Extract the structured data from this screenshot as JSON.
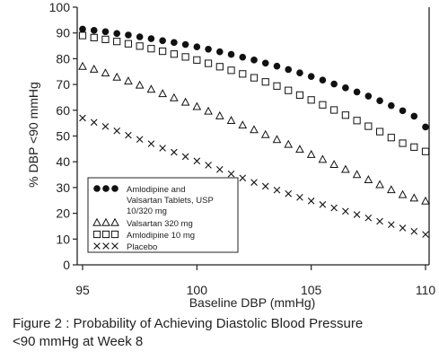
{
  "chart_data": {
    "type": "scatter",
    "xlabel": "Baseline DBP (mmHg)",
    "ylabel": "% DBP <90 mmHg",
    "xlim": [
      95,
      110
    ],
    "ylim": [
      0,
      100
    ],
    "x_ticks": [
      "95",
      "100",
      "105",
      "110"
    ],
    "y_ticks": [
      "0",
      "10",
      "20",
      "30",
      "40",
      "50",
      "60",
      "70",
      "80",
      "90",
      "100"
    ],
    "legend_position": "lower-left",
    "series": [
      {
        "name": "Amlodipine and Valsartan Tablets, USP 10/320 mg",
        "marker": "filled-circle",
        "color": "#111111",
        "points": [
          [
            95.0,
            91.5
          ],
          [
            95.5,
            91.0
          ],
          [
            96.0,
            90.5
          ],
          [
            96.5,
            89.8
          ],
          [
            97.0,
            89.2
          ],
          [
            97.5,
            88.5
          ],
          [
            98.0,
            87.8
          ],
          [
            98.5,
            87.0
          ],
          [
            99.0,
            86.3
          ],
          [
            99.5,
            85.5
          ],
          [
            100.0,
            84.6
          ],
          [
            100.5,
            83.7
          ],
          [
            101.0,
            82.7
          ],
          [
            101.5,
            81.7
          ],
          [
            102.0,
            80.6
          ],
          [
            102.5,
            79.5
          ],
          [
            103.0,
            78.3
          ],
          [
            103.5,
            77.1
          ],
          [
            104.0,
            75.8
          ],
          [
            104.5,
            74.5
          ],
          [
            105.0,
            73.1
          ],
          [
            105.5,
            71.7
          ],
          [
            106.0,
            70.2
          ],
          [
            106.5,
            68.7
          ],
          [
            107.0,
            67.1
          ],
          [
            107.5,
            65.5
          ],
          [
            108.0,
            63.7
          ],
          [
            108.5,
            61.8
          ],
          [
            109.0,
            59.8
          ],
          [
            109.5,
            57.7
          ],
          [
            110.0,
            53.5
          ]
        ]
      },
      {
        "name": "Valsartan 320 mg",
        "marker": "open-triangle",
        "color": "#111111",
        "points": [
          [
            95.0,
            77.0
          ],
          [
            95.5,
            75.9
          ],
          [
            96.0,
            74.4
          ],
          [
            96.5,
            72.8
          ],
          [
            97.0,
            71.3
          ],
          [
            97.5,
            69.7
          ],
          [
            98.0,
            68.1
          ],
          [
            98.5,
            66.4
          ],
          [
            99.0,
            64.8
          ],
          [
            99.5,
            63.1
          ],
          [
            100.0,
            61.4
          ],
          [
            100.5,
            59.6
          ],
          [
            101.0,
            57.8
          ],
          [
            101.5,
            56.0
          ],
          [
            102.0,
            54.2
          ],
          [
            102.5,
            52.4
          ],
          [
            103.0,
            50.5
          ],
          [
            103.5,
            48.6
          ],
          [
            104.0,
            46.7
          ],
          [
            104.5,
            44.8
          ],
          [
            105.0,
            42.8
          ],
          [
            105.5,
            40.9
          ],
          [
            106.0,
            38.9
          ],
          [
            106.5,
            37.0
          ],
          [
            107.0,
            35.0
          ],
          [
            107.5,
            33.0
          ],
          [
            108.0,
            31.1
          ],
          [
            108.5,
            29.1
          ],
          [
            109.0,
            27.2
          ],
          [
            109.5,
            25.9
          ],
          [
            110.0,
            24.7
          ]
        ]
      },
      {
        "name": "Amlodipine 10 mg",
        "marker": "open-square",
        "color": "#111111",
        "points": [
          [
            95.0,
            89.0
          ],
          [
            95.5,
            88.2
          ],
          [
            96.0,
            87.5
          ],
          [
            96.5,
            86.7
          ],
          [
            97.0,
            85.8
          ],
          [
            97.5,
            84.9
          ],
          [
            98.0,
            83.9
          ],
          [
            98.5,
            82.9
          ],
          [
            99.0,
            81.8
          ],
          [
            99.5,
            80.7
          ],
          [
            100.0,
            79.5
          ],
          [
            100.5,
            78.2
          ],
          [
            101.0,
            76.9
          ],
          [
            101.5,
            75.5
          ],
          [
            102.0,
            74.1
          ],
          [
            102.5,
            72.6
          ],
          [
            103.0,
            71.0
          ],
          [
            103.5,
            69.4
          ],
          [
            104.0,
            67.7
          ],
          [
            104.5,
            65.9
          ],
          [
            105.0,
            64.0
          ],
          [
            105.5,
            62.1
          ],
          [
            106.0,
            60.1
          ],
          [
            106.5,
            58.1
          ],
          [
            107.0,
            56.0
          ],
          [
            107.5,
            53.8
          ],
          [
            108.0,
            51.7
          ],
          [
            108.5,
            49.4
          ],
          [
            109.0,
            47.2
          ],
          [
            109.5,
            45.7
          ],
          [
            110.0,
            44.0
          ]
        ]
      },
      {
        "name": "Placebo",
        "marker": "x",
        "color": "#111111",
        "points": [
          [
            95.0,
            57.0
          ],
          [
            95.5,
            55.3
          ],
          [
            96.0,
            53.7
          ],
          [
            96.5,
            52.0
          ],
          [
            97.0,
            50.3
          ],
          [
            97.5,
            48.7
          ],
          [
            98.0,
            47.0
          ],
          [
            98.5,
            45.3
          ],
          [
            99.0,
            43.7
          ],
          [
            99.5,
            42.0
          ],
          [
            100.0,
            40.3
          ],
          [
            100.5,
            38.7
          ],
          [
            101.0,
            37.0
          ],
          [
            101.5,
            35.3
          ],
          [
            102.0,
            33.7
          ],
          [
            102.5,
            32.0
          ],
          [
            103.0,
            30.5
          ],
          [
            103.5,
            29.0
          ],
          [
            104.0,
            27.6
          ],
          [
            104.5,
            26.2
          ],
          [
            105.0,
            24.8
          ],
          [
            105.5,
            23.4
          ],
          [
            106.0,
            22.1
          ],
          [
            106.5,
            20.8
          ],
          [
            107.0,
            19.5
          ],
          [
            107.5,
            18.2
          ],
          [
            108.0,
            16.9
          ],
          [
            108.5,
            15.6
          ],
          [
            109.0,
            14.3
          ],
          [
            109.5,
            13.0
          ],
          [
            110.0,
            11.8
          ]
        ]
      }
    ]
  },
  "caption": {
    "line1": "Figure 2 : Probability of Achieving Diastolic Blood Pressure",
    "line2": "<90 mmHg at Week 8"
  }
}
